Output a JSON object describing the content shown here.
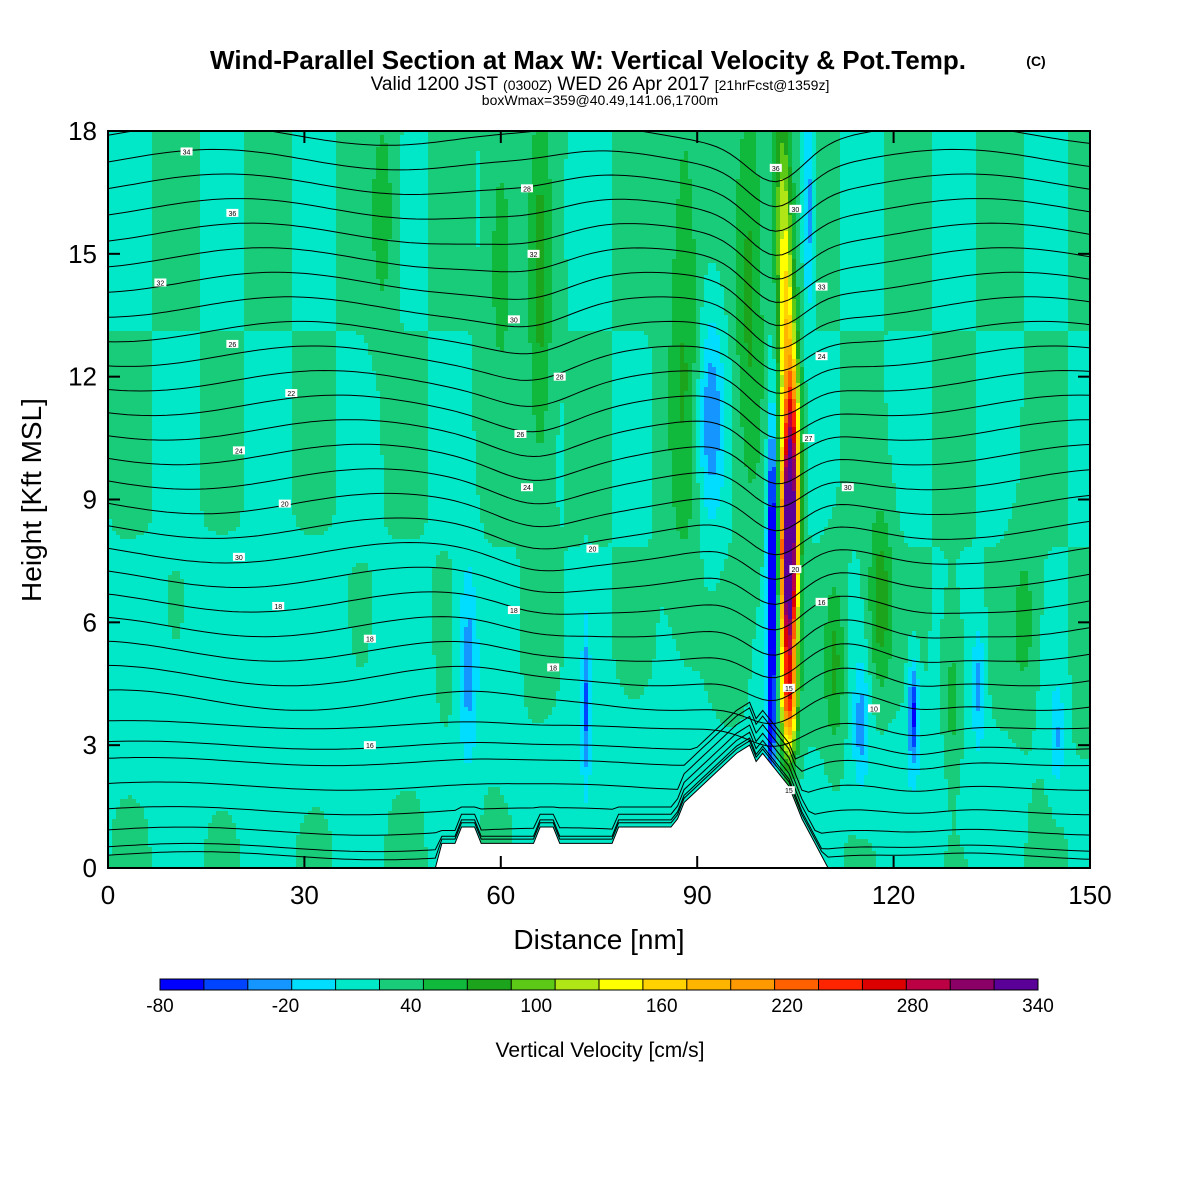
{
  "title": {
    "main": "Wind-Parallel Section at Max W: Vertical Velocity & Pot.Temp.",
    "main_suffix": "(C)",
    "valid_a": "Valid 1200 JST",
    "valid_b": "(0300Z)",
    "valid_c": "WED 26 Apr 2017",
    "valid_d": "[21hrFcst@1359z]",
    "box": "boxWmax=359@40.49,141.06,1700m"
  },
  "chart_data": {
    "type": "heatmap",
    "xlabel": "Distance [nm]",
    "ylabel": "Height [Kft MSL]",
    "xlim": [
      0,
      150
    ],
    "ylim": [
      0,
      18
    ],
    "xticks": [
      "0",
      "30",
      "60",
      "90",
      "120",
      "150"
    ],
    "yticks": [
      "0",
      "3",
      "6",
      "9",
      "12",
      "15",
      "18"
    ],
    "colorbar": {
      "label": "Vertical Velocity [cm/s]",
      "min": -80,
      "max": 340,
      "step": 20,
      "tick_labels": [
        "-80",
        "-20",
        "40",
        "100",
        "160",
        "220",
        "280",
        "340"
      ],
      "colors": [
        "#0000ff",
        "#0044ff",
        "#1495ff",
        "#00ddff",
        "#00e8c8",
        "#19cc79",
        "#10b93c",
        "#1ca51c",
        "#5bc916",
        "#b0e616",
        "#ffff00",
        "#ffd200",
        "#ffb400",
        "#ff9900",
        "#ff6000",
        "#ff2400",
        "#dd0000",
        "#bb0044",
        "#8b0066",
        "#5a0099"
      ]
    },
    "background_band_w": 20,
    "updraft_core": {
      "x": 104,
      "peak_height": 7.5,
      "peak_w": 359
    },
    "downdraft_core": {
      "x": 101.5,
      "height": 7.5,
      "min_w": -80
    },
    "terrain": {
      "x": [
        50,
        51,
        53,
        54,
        56,
        57,
        59,
        60,
        65,
        66,
        68,
        69,
        72,
        73,
        77,
        78,
        86,
        87,
        88,
        90,
        92,
        94,
        96,
        98,
        99,
        100,
        101,
        102,
        103,
        104,
        105,
        106,
        107,
        108,
        109,
        110
      ],
      "height": [
        0,
        0.6,
        0.6,
        1.0,
        1.0,
        0.6,
        0.6,
        0.6,
        0.6,
        1.0,
        1.0,
        0.6,
        0.6,
        0.6,
        0.6,
        1.0,
        1.0,
        1.2,
        1.6,
        1.9,
        2.2,
        2.5,
        2.8,
        3.0,
        2.6,
        2.8,
        2.6,
        2.4,
        2.2,
        2.0,
        1.6,
        1.2,
        0.9,
        0.6,
        0.3,
        0
      ]
    },
    "isentropes": {
      "heights_at_x0": [
        0.3,
        0.5,
        0.9,
        1.4,
        2.0,
        2.6,
        3.0,
        3.5,
        4.1,
        4.7,
        5.3,
        5.9,
        6.5,
        7.1,
        7.7,
        8.3,
        8.9,
        9.5,
        10.1,
        10.7,
        11.3,
        11.9,
        12.5,
        13.1,
        13.7,
        14.3,
        14.9,
        15.5,
        16.1,
        16.7,
        17.3,
        17.9
      ]
    },
    "contour_labels": [
      {
        "text": "34",
        "x": 12,
        "y": 17.5
      },
      {
        "text": "36",
        "x": 19,
        "y": 16.0
      },
      {
        "text": "32",
        "x": 8,
        "y": 14.3
      },
      {
        "text": "26",
        "x": 19,
        "y": 12.8
      },
      {
        "text": "22",
        "x": 28,
        "y": 11.6
      },
      {
        "text": "24",
        "x": 20,
        "y": 10.2
      },
      {
        "text": "20",
        "x": 27,
        "y": 8.9
      },
      {
        "text": "30",
        "x": 20,
        "y": 7.6
      },
      {
        "text": "18",
        "x": 26,
        "y": 6.4
      },
      {
        "text": "18",
        "x": 40,
        "y": 5.6
      },
      {
        "text": "16",
        "x": 40,
        "y": 3.0
      },
      {
        "text": "28",
        "x": 64,
        "y": 16.6
      },
      {
        "text": "32",
        "x": 65,
        "y": 15.0
      },
      {
        "text": "30",
        "x": 62,
        "y": 13.4
      },
      {
        "text": "28",
        "x": 69,
        "y": 12.0
      },
      {
        "text": "26",
        "x": 63,
        "y": 10.6
      },
      {
        "text": "24",
        "x": 64,
        "y": 9.3
      },
      {
        "text": "20",
        "x": 74,
        "y": 7.8
      },
      {
        "text": "18",
        "x": 62,
        "y": 6.3
      },
      {
        "text": "18",
        "x": 68,
        "y": 4.9
      },
      {
        "text": "36",
        "x": 102,
        "y": 17.1
      },
      {
        "text": "30",
        "x": 105,
        "y": 16.1
      },
      {
        "text": "33",
        "x": 109,
        "y": 14.2
      },
      {
        "text": "24",
        "x": 109,
        "y": 12.5
      },
      {
        "text": "27",
        "x": 107,
        "y": 10.5
      },
      {
        "text": "30",
        "x": 113,
        "y": 9.3
      },
      {
        "text": "20",
        "x": 105,
        "y": 7.3
      },
      {
        "text": "16",
        "x": 109,
        "y": 6.5
      },
      {
        "text": "15",
        "x": 104,
        "y": 4.4
      },
      {
        "text": "10",
        "x": 117,
        "y": 3.9
      },
      {
        "text": "15",
        "x": 104,
        "y": 1.9
      }
    ]
  }
}
